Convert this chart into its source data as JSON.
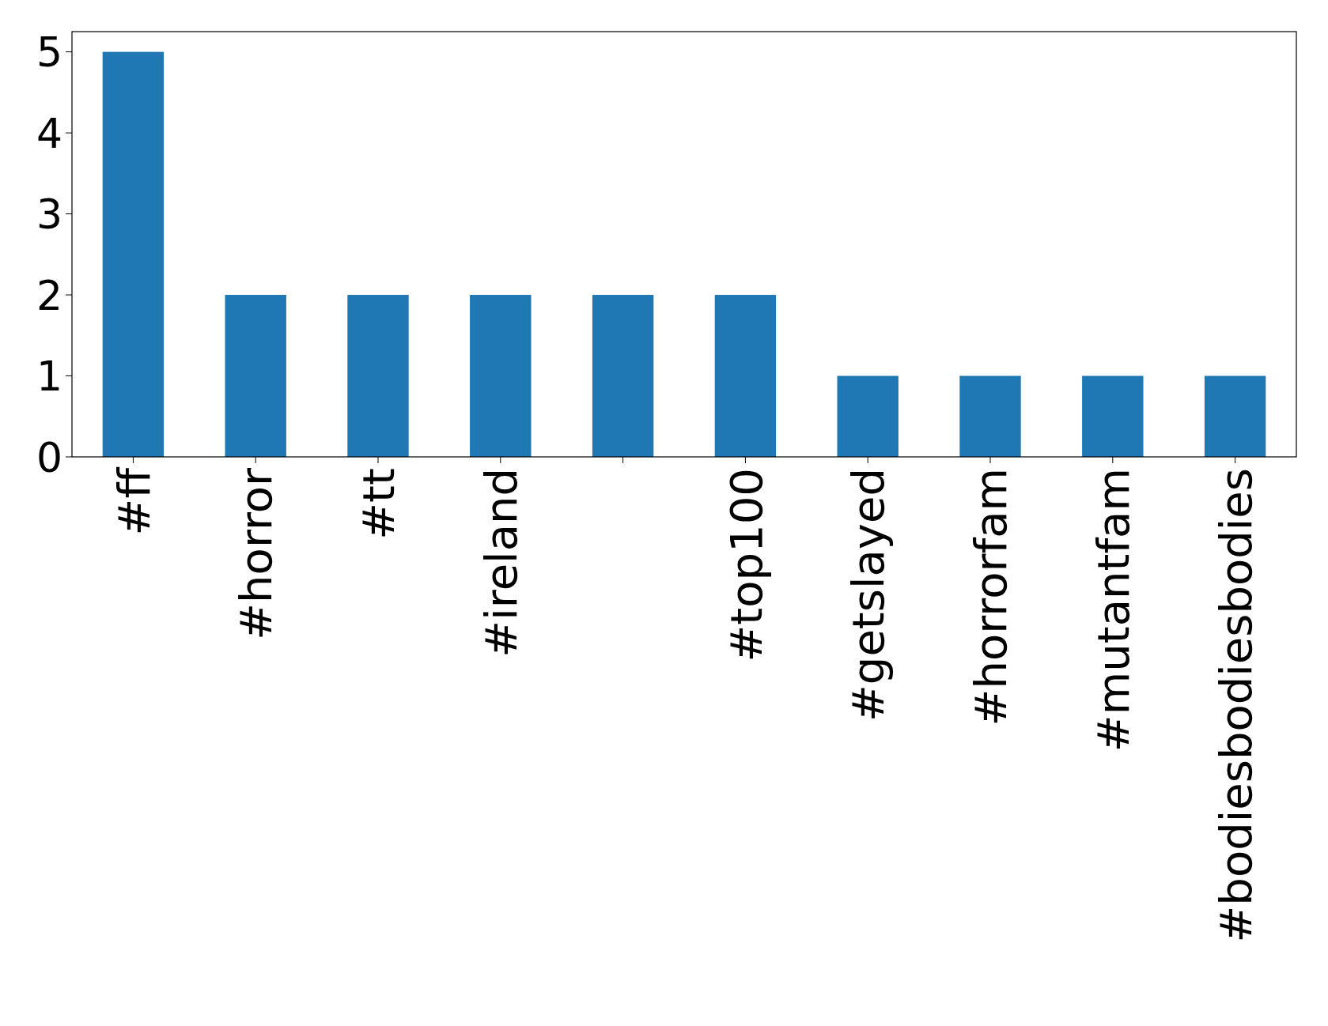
{
  "chart_data": {
    "type": "bar",
    "categories": [
      "#ff",
      "#horror",
      "#tt",
      "#ireland",
      null,
      "#top100",
      "#getslayed",
      "#horrorfam",
      "#mutantfam",
      "#bodiesbodiesbodies"
    ],
    "values": [
      5,
      2,
      2,
      2,
      2,
      2,
      1,
      1,
      1,
      1
    ],
    "color": "#1f77b4",
    "ylim": [
      0,
      5.25
    ],
    "yticks": [
      0,
      1,
      2,
      3,
      4,
      5
    ],
    "grid": false
  }
}
